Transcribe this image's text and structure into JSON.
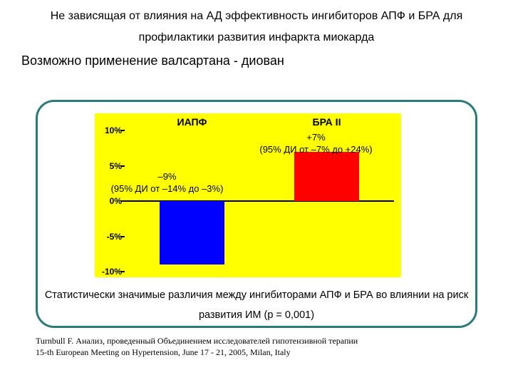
{
  "title_line": "Не зависящая от влияния на АД эффективность  ингибиторов АПФ и БРА для профилактики развития инфаркта миокарда",
  "subtitle": "Возможно применение валсартана - диован",
  "chart": {
    "type": "bar",
    "background_color": "#ffff00",
    "ylim": [
      -10,
      10
    ],
    "ytick_labels": [
      "10%",
      "5%",
      "0%",
      "-5%",
      "-10%"
    ],
    "yticks": [
      10,
      5,
      0,
      -5,
      -10
    ],
    "columns": [
      {
        "header": "ИАПФ",
        "value": -9,
        "color": "#0000ff",
        "anno_main": "–9%",
        "anno_ci": "(95% ДИ от –14% до –3%)"
      },
      {
        "header": "БРА II",
        "value": 7,
        "color": "#ff0000",
        "anno_main": "+7%",
        "anno_ci": "(95% ДИ от –7% до +24%)"
      }
    ],
    "axis_font_size": 12,
    "header_font_size": 14,
    "anno_font_size": 13,
    "baseline_color": "#000000"
  },
  "caption": "Статистически значимые различия между ингибиторами АПФ и БРА во влиянии на риск развития ИМ  (p = 0,001)",
  "citation_l1": "Turnbull F. Анализ, проведенный Объединением исследователей гипотензивной терапии",
  "citation_l2": "15-th European Meeting on Hypertension, June 17 - 21, 2005, Milan, Italy",
  "panel_border_color": "#2a7a7a"
}
